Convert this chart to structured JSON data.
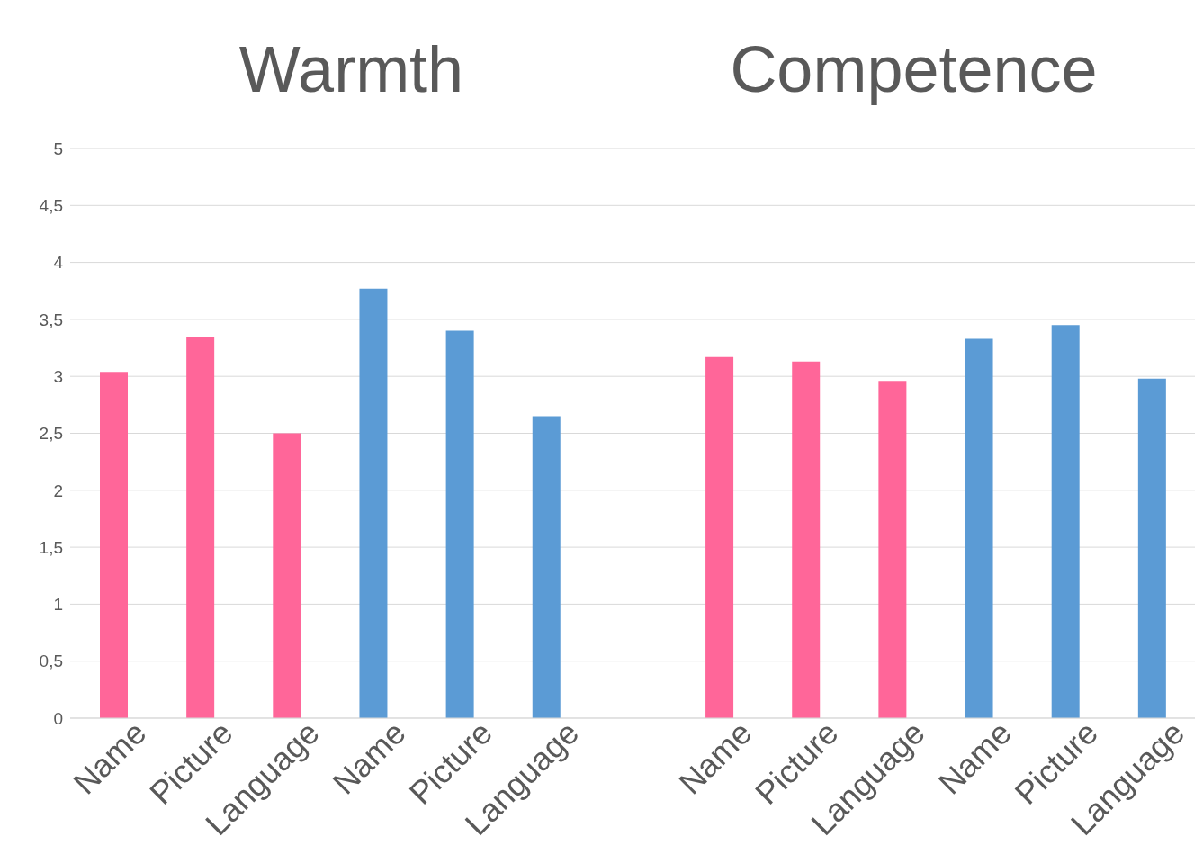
{
  "chart_data": {
    "type": "bar",
    "annotations": [
      "Warmth",
      "Competence"
    ],
    "categories": [
      "Name",
      "Picture",
      "Language",
      "Name",
      "Picture",
      "Language",
      null,
      "Name",
      "Picture",
      "Language",
      "Name",
      "Picture",
      "Language"
    ],
    "values": [
      3.04,
      3.35,
      2.5,
      3.77,
      3.4,
      2.65,
      null,
      3.17,
      3.13,
      2.96,
      3.33,
      3.45,
      2.98
    ],
    "colors": [
      "#ff6699",
      "#ff6699",
      "#ff6699",
      "#5b9bd5",
      "#5b9bd5",
      "#5b9bd5",
      null,
      "#ff6699",
      "#ff6699",
      "#ff6699",
      "#5b9bd5",
      "#5b9bd5",
      "#5b9bd5"
    ],
    "ylim": [
      0,
      5
    ],
    "yticks": [
      0,
      {
        "value": 0.5,
        "label": "0,5"
      },
      1,
      {
        "value": 1.5,
        "label": "1,5"
      },
      2,
      {
        "value": 2.5,
        "label": "2,5"
      },
      3,
      {
        "value": 3.5,
        "label": "3,5"
      },
      4,
      {
        "value": 4.5,
        "label": "4,5"
      },
      5
    ],
    "grid": "y"
  }
}
